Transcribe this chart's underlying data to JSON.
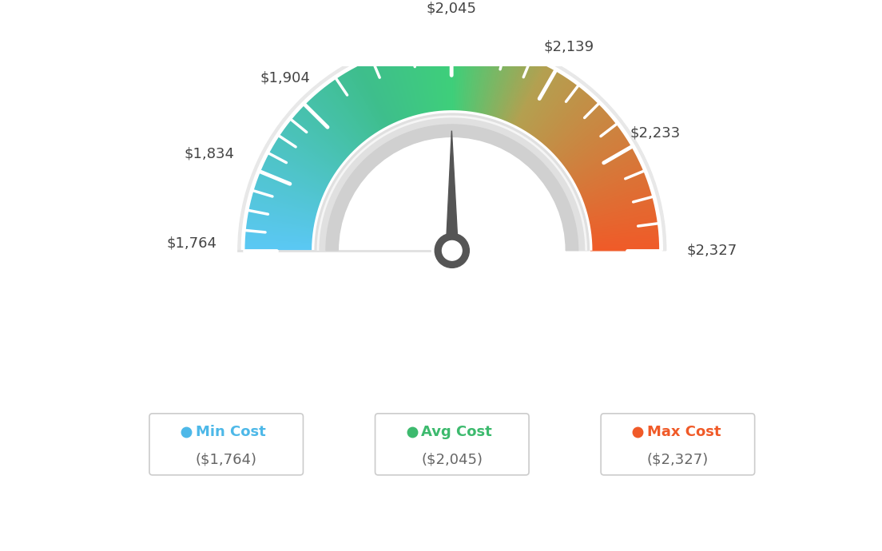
{
  "min_value": 1764,
  "max_value": 2327,
  "avg_value": 2045,
  "tick_labels": [
    "$1,764",
    "$1,834",
    "$1,904",
    "$2,045",
    "$2,139",
    "$2,233",
    "$2,327"
  ],
  "tick_values": [
    1764,
    1834,
    1904,
    2045,
    2139,
    2233,
    2327
  ],
  "legend": [
    {
      "label": "Min Cost",
      "value": "($1,764)",
      "color": "#4db8e8"
    },
    {
      "label": "Avg Cost",
      "value": "($2,045)",
      "color": "#3dba6e"
    },
    {
      "label": "Max Cost",
      "value": "($2,327)",
      "color": "#f05a28"
    }
  ],
  "background_color": "#ffffff",
  "needle_color": "#555555",
  "color_stops": [
    [
      0.0,
      [
        91,
        200,
        245
      ]
    ],
    [
      0.35,
      [
        62,
        190,
        140
      ]
    ],
    [
      0.5,
      [
        62,
        207,
        122
      ]
    ],
    [
      0.65,
      [
        180,
        160,
        80
      ]
    ],
    [
      1.0,
      [
        240,
        90,
        40
      ]
    ]
  ]
}
